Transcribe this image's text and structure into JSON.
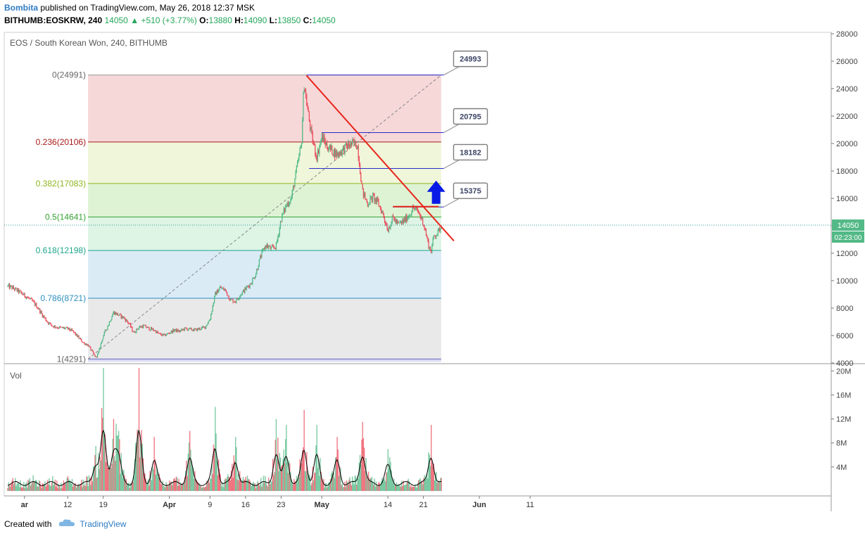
{
  "header": {
    "author": "Bombita",
    "published": "published on TradingView.com, May 26, 2018 12:37 MSK",
    "symbol": "BITHUMB:EOSKRW, 240",
    "price": "14050",
    "change": "+510 (+3.77%)",
    "open_label": "O:",
    "open": "13880",
    "high_label": "H:",
    "high": "14090",
    "low_label": "L:",
    "low": "13850",
    "close_label": "C:",
    "close": "14050"
  },
  "footer": {
    "created": "Created with",
    "brand": "TradingView"
  },
  "colors": {
    "up": "#53b987",
    "down": "#eb4d5c",
    "trend_line": "#e8251c",
    "target_line": "#2b2bcc",
    "arrow": "#0a1ae6",
    "ma_line": "#000000"
  },
  "chart_data": {
    "type": "candlestick",
    "title": "EOS / South Korean Won, 240, BITHUMB",
    "volume_label": "Vol",
    "current_price": {
      "value": 14050,
      "label": "14050",
      "countdown": "02:23:00"
    },
    "price_axis": {
      "ylim": [
        4000,
        28000
      ],
      "ticks": [
        4000,
        6000,
        8000,
        10000,
        12000,
        14000,
        16000,
        18000,
        20000,
        22000,
        24000,
        26000,
        28000
      ]
    },
    "volume_axis": {
      "ylim": [
        0,
        20500000
      ],
      "ticks": [
        4000000,
        8000000,
        12000000,
        16000000,
        20000000
      ],
      "tick_labels": [
        "4M",
        "8M",
        "12M",
        "16M",
        "20M"
      ]
    },
    "time_axis": {
      "ticks": [
        {
          "label": "ar",
          "day": 3.5
        },
        {
          "label": "12",
          "day": 12
        },
        {
          "label": "19",
          "day": 19
        },
        {
          "label": "Apr",
          "day": 32
        },
        {
          "label": "9",
          "day": 40
        },
        {
          "label": "16",
          "day": 47
        },
        {
          "label": "23",
          "day": 54
        },
        {
          "label": "May",
          "day": 62
        },
        {
          "label": "14",
          "day": 75
        },
        {
          "label": "21",
          "day": 82
        },
        {
          "label": "Jun",
          "day": 93
        },
        {
          "label": "11",
          "day": 103
        }
      ]
    },
    "fibonacci": {
      "levels": [
        {
          "ratio": "0",
          "price": 24991,
          "label": "0(24991)",
          "fill": "#f4d1d1",
          "line": "#999999",
          "text": "#666666"
        },
        {
          "ratio": "0.236",
          "price": 20106,
          "label": "0.236(20106)",
          "fill": "#ecf4d2",
          "line": "#a81818",
          "text": "#a81818"
        },
        {
          "ratio": "0.382",
          "price": 17083,
          "label": "0.382(17083)",
          "fill": "#d8f1cc",
          "line": "#8fb520",
          "text": "#8fb520"
        },
        {
          "ratio": "0.5",
          "price": 14641,
          "label": "0.5(14641)",
          "fill": "#d8f2e0",
          "line": "#36a336",
          "text": "#36a336"
        },
        {
          "ratio": "0.618",
          "price": 12198,
          "label": "0.618(12198)",
          "fill": "#d4e7f5",
          "line": "#1ea68c",
          "text": "#1ea68c"
        },
        {
          "ratio": "0.786",
          "price": 8721,
          "label": "0.786(8721)",
          "fill": "#e5e5e5",
          "line": "#2c8fbf",
          "text": "#2c8fbf"
        },
        {
          "ratio": "1",
          "price": 4291,
          "label": "1(4291)",
          "fill": "#d3d3f0",
          "line": "#6666bb",
          "text": "#666666"
        }
      ],
      "start_day": 16,
      "end_day": 85.5
    },
    "targets": [
      {
        "label": "24993",
        "price": 24993,
        "start_day": 59,
        "end_day": 86
      },
      {
        "label": "20795",
        "price": 20795,
        "start_day": 62,
        "end_day": 86
      },
      {
        "label": "18182",
        "price": 18182,
        "start_day": 59.5,
        "end_day": 86
      },
      {
        "label": "15375",
        "price": 15375,
        "start_day": 76,
        "end_day": 86
      }
    ],
    "trendlines": [
      {
        "kind": "resistance",
        "from": {
          "day": 59,
          "price": 24950
        },
        "to": {
          "day": 88,
          "price": 12900
        }
      },
      {
        "kind": "horizontal",
        "from": {
          "day": 76,
          "price": 15400
        },
        "to": {
          "day": 85,
          "price": 15400
        }
      },
      {
        "kind": "diagonal-dashed",
        "from": {
          "day": 16,
          "price": 4291
        },
        "to": {
          "day": 85.5,
          "price": 24991
        }
      }
    ],
    "up_arrow": {
      "day": 84.5,
      "price": 15600
    },
    "price_path": [
      [
        0,
        9600
      ],
      [
        1,
        9500
      ],
      [
        2,
        9300
      ],
      [
        3,
        9050
      ],
      [
        4,
        8800
      ],
      [
        5,
        8500
      ],
      [
        6,
        8100
      ],
      [
        7,
        7500
      ],
      [
        8,
        7000
      ],
      [
        9,
        6700
      ],
      [
        10,
        6600
      ],
      [
        11,
        6550
      ],
      [
        12,
        6500
      ],
      [
        13,
        6300
      ],
      [
        14,
        5900
      ],
      [
        15,
        5500
      ],
      [
        16,
        5300
      ],
      [
        17,
        4700
      ],
      [
        17.5,
        4400
      ],
      [
        18,
        4700
      ],
      [
        19,
        6000
      ],
      [
        20,
        6800
      ],
      [
        21,
        7700
      ],
      [
        22,
        7500
      ],
      [
        23,
        7300
      ],
      [
        24,
        6900
      ],
      [
        25,
        6200
      ],
      [
        26,
        6600
      ],
      [
        27,
        6700
      ],
      [
        28,
        6500
      ],
      [
        29,
        6400
      ],
      [
        30,
        6100
      ],
      [
        31,
        6000
      ],
      [
        32,
        6200
      ],
      [
        33,
        6400
      ],
      [
        34,
        6300
      ],
      [
        35,
        6500
      ],
      [
        36,
        6450
      ],
      [
        37,
        6400
      ],
      [
        38,
        6500
      ],
      [
        39,
        6600
      ],
      [
        40,
        7200
      ],
      [
        41,
        9000
      ],
      [
        42,
        9500
      ],
      [
        43,
        9300
      ],
      [
        44,
        8600
      ],
      [
        45,
        8500
      ],
      [
        46,
        9000
      ],
      [
        47,
        9400
      ],
      [
        48,
        9800
      ],
      [
        49,
        10500
      ],
      [
        50,
        11800
      ],
      [
        51,
        12600
      ],
      [
        52,
        12300
      ],
      [
        53,
        12500
      ],
      [
        54,
        14500
      ],
      [
        55,
        15500
      ],
      [
        56,
        16000
      ],
      [
        57,
        18000
      ],
      [
        58,
        20000
      ],
      [
        58.5,
        24500
      ],
      [
        59,
        23000
      ],
      [
        60,
        20500
      ],
      [
        61,
        19000
      ],
      [
        62,
        20500
      ],
      [
        63,
        19800
      ],
      [
        64,
        19500
      ],
      [
        65,
        19200
      ],
      [
        66,
        19500
      ],
      [
        67,
        19800
      ],
      [
        68,
        20000
      ],
      [
        69,
        19900
      ],
      [
        70,
        16500
      ],
      [
        71,
        15600
      ],
      [
        72,
        16100
      ],
      [
        73,
        15700
      ],
      [
        74,
        14900
      ],
      [
        75,
        13700
      ],
      [
        76,
        14600
      ],
      [
        77,
        14100
      ],
      [
        78,
        14300
      ],
      [
        79,
        14700
      ],
      [
        80,
        15300
      ],
      [
        81,
        15000
      ],
      [
        82,
        14200
      ],
      [
        83,
        12600
      ],
      [
        83.5,
        12100
      ],
      [
        84,
        13200
      ],
      [
        85,
        13600
      ],
      [
        85.6,
        14050
      ]
    ],
    "volume_peaks": [
      [
        17.5,
        7500000
      ],
      [
        19,
        20500000
      ],
      [
        21,
        12000000
      ],
      [
        22,
        10000000
      ],
      [
        26,
        20500000
      ],
      [
        29,
        9000000
      ],
      [
        36,
        10000000
      ],
      [
        41,
        14000000
      ],
      [
        45,
        9000000
      ],
      [
        53,
        12000000
      ],
      [
        55,
        11000000
      ],
      [
        58.5,
        13500000
      ],
      [
        61,
        11000000
      ],
      [
        65,
        9000000
      ],
      [
        70,
        11500000
      ],
      [
        75,
        7000000
      ],
      [
        83.5,
        11000000
      ]
    ]
  }
}
